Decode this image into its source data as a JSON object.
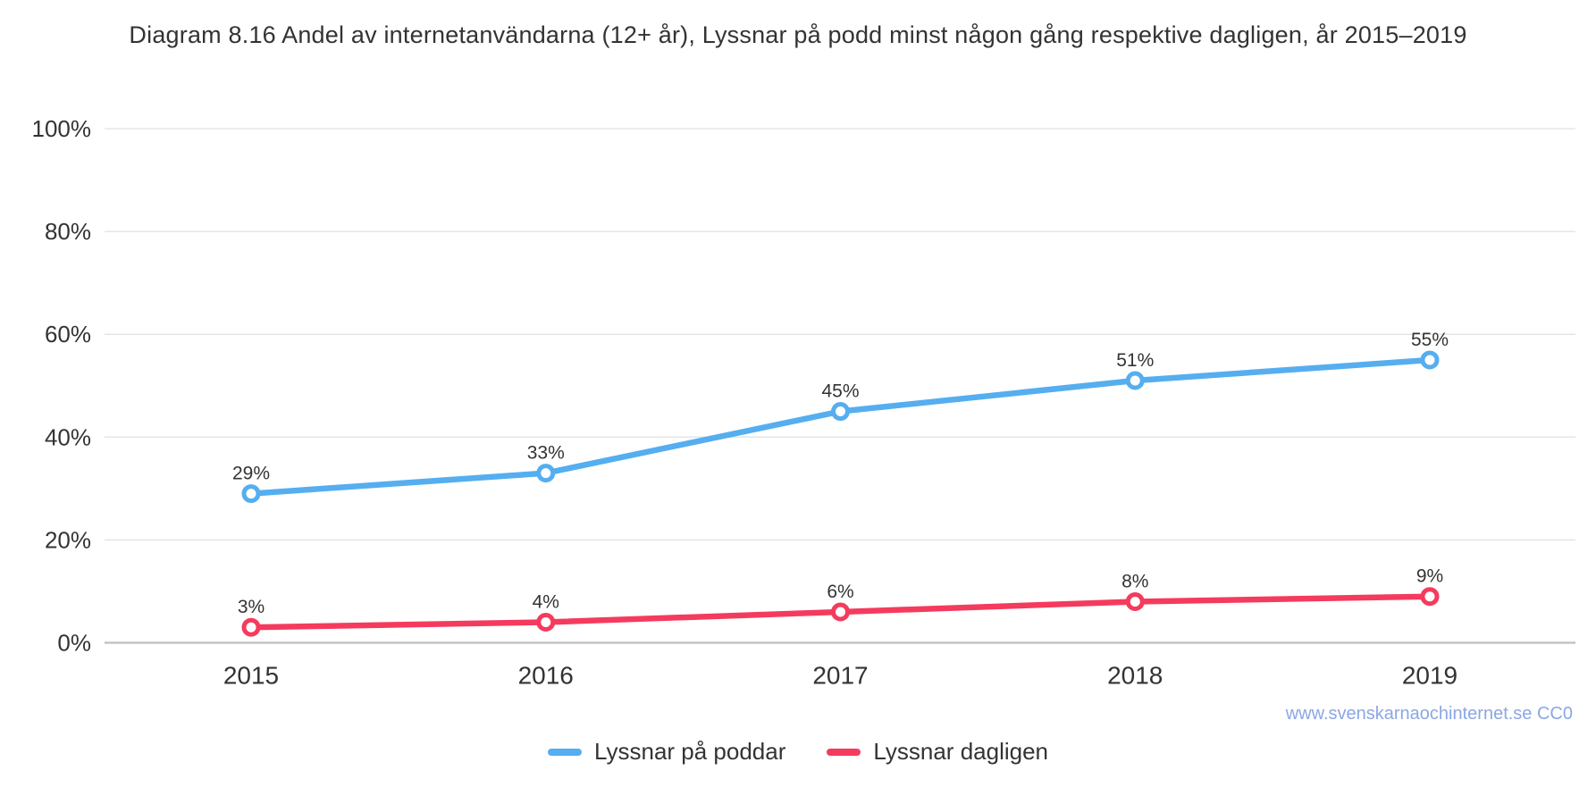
{
  "title": "Diagram 8.16 Andel av internetanvändarna (12+ år), Lyssnar på podd minst någon gång respektive dagligen, år 2015–2019",
  "watermark": "www.svenskarnaochinternet.se CC0",
  "colors": {
    "text": "#333333",
    "grid": "#e5e5e5",
    "axis": "#c4c4c4",
    "watermark": "#8ba7e4"
  },
  "chart_data": {
    "type": "line",
    "title": "Diagram 8.16 Andel av internetanvändarna (12+ år), Lyssnar på podd minst någon gång respektive dagligen, år 2015–2019",
    "categories": [
      "2015",
      "2016",
      "2017",
      "2018",
      "2019"
    ],
    "series": [
      {
        "name": "Lyssnar på poddar",
        "color": "#55aeef",
        "values": [
          29,
          33,
          45,
          51,
          55
        ]
      },
      {
        "name": "Lyssnar dagligen",
        "color": "#f43b5e",
        "values": [
          3,
          4,
          6,
          8,
          9
        ]
      }
    ],
    "xlabel": "",
    "ylabel": "",
    "ylim": [
      0,
      100
    ],
    "yticks": [
      0,
      20,
      40,
      60,
      80,
      100
    ],
    "ytick_labels": [
      "0%",
      "20%",
      "40%",
      "60%",
      "80%",
      "100%"
    ],
    "data_label_format": "{value}%",
    "grid": true,
    "legend_position": "bottom",
    "marker": "open-circle"
  }
}
